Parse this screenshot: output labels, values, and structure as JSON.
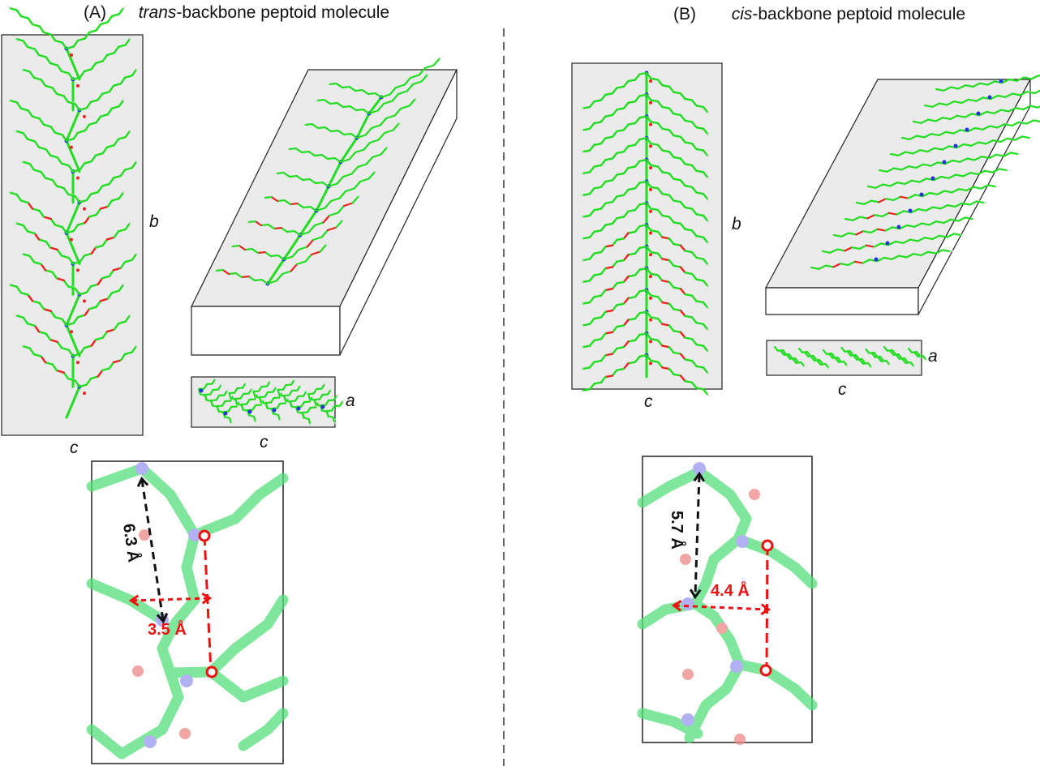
{
  "panel_a": {
    "tag": "(A)",
    "title_prefix": "trans",
    "title_suffix": "-backbone peptoid molecule",
    "axis_b": "b",
    "axis_c_main": "c",
    "axis_a_side": "a",
    "axis_c_side": "c",
    "distance_black": "6.3 Å",
    "distance_red": "3.5 Å"
  },
  "panel_b": {
    "tag": "(B)",
    "title_prefix": "cis",
    "title_suffix": "-backbone peptoid molecule",
    "axis_b": "b",
    "axis_c_main": "c",
    "axis_a_side": "a",
    "axis_c_side": "c",
    "distance_black": "5.7 Å",
    "distance_red": "4.4 Å"
  },
  "colors": {
    "carbon": "#22dd22",
    "hydrogen": "#e6e6e6",
    "nitrogen": "#2233dd",
    "oxygen": "#ee2222",
    "cell_fill": "#ebebeb",
    "measure_red": "#ee1111",
    "measure_black": "#111111"
  }
}
